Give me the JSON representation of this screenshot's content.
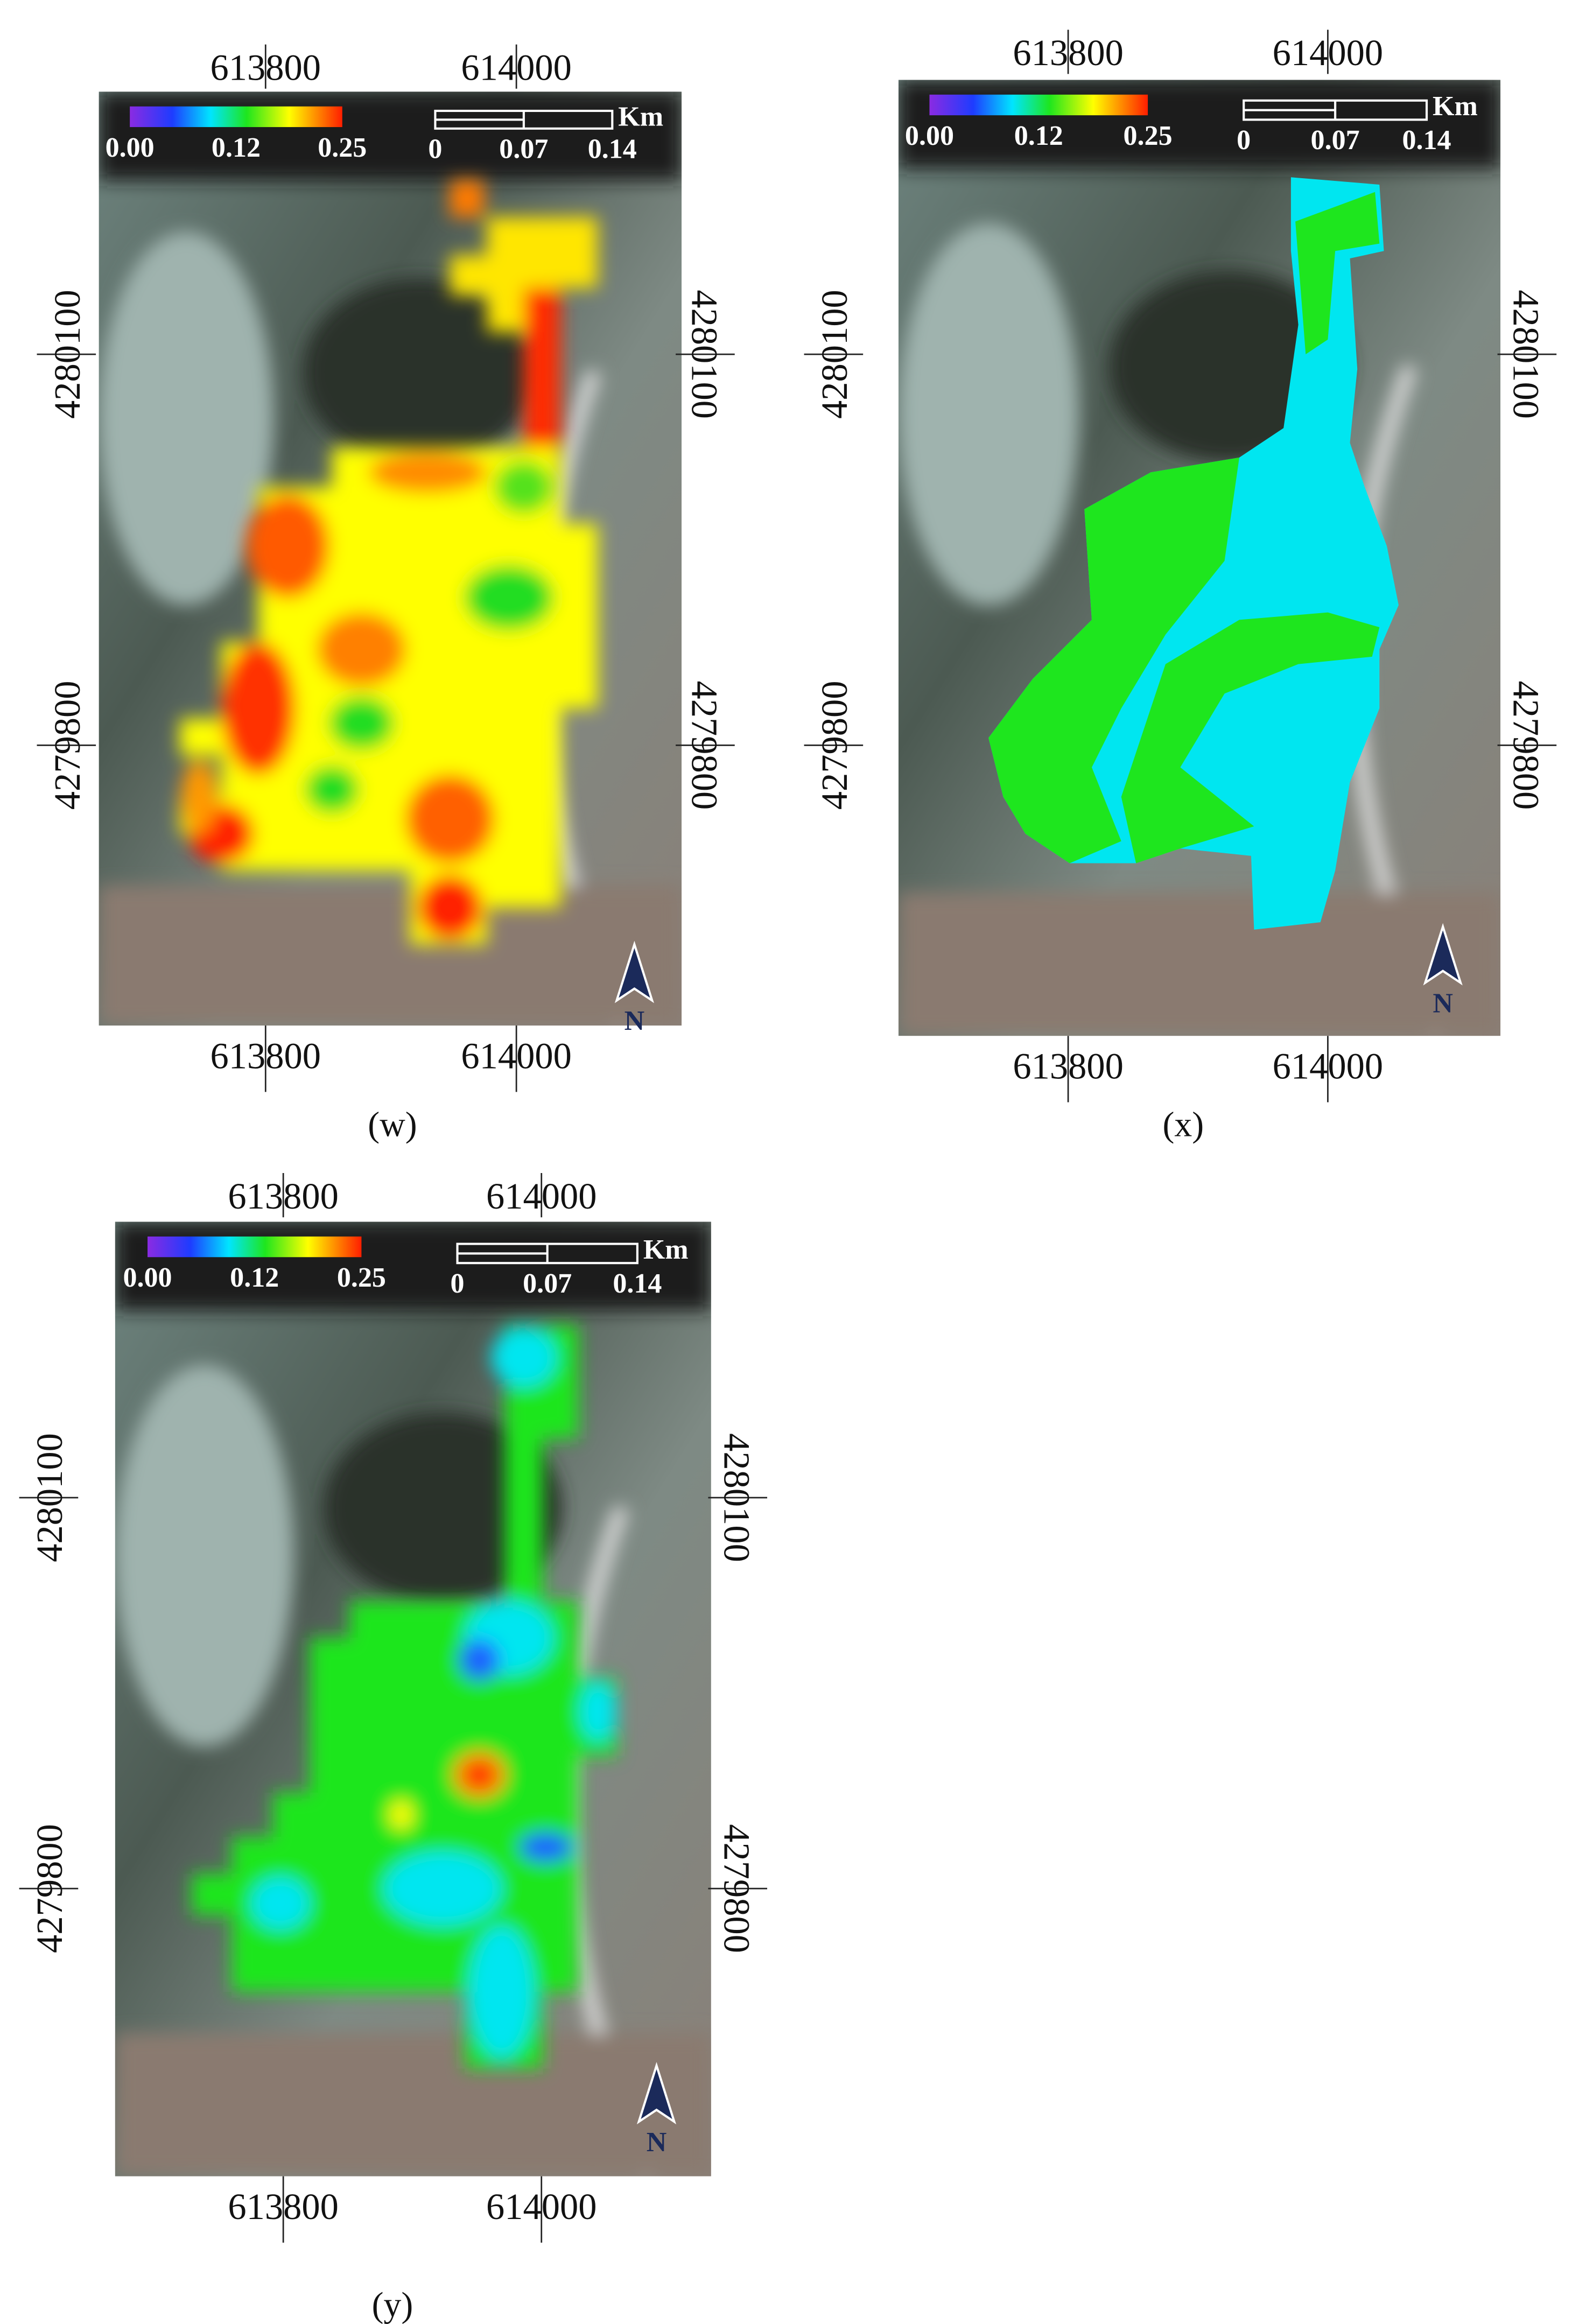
{
  "panels": [
    {
      "caption": "(w)",
      "top_labels": [
        "613800",
        "614000"
      ],
      "bottom_labels": [
        "613800",
        "614000"
      ],
      "left_labels": [
        "4280100",
        "4279800"
      ],
      "right_labels": [
        "4280100",
        "4279800"
      ],
      "colorbar_labels": [
        "0.00",
        "0.12",
        "0.25"
      ],
      "scale_unit": "Km",
      "scale_labels": [
        "0",
        "0.07",
        "0.14"
      ],
      "north": "N"
    },
    {
      "caption": "(x)",
      "top_labels": [
        "613800",
        "614000"
      ],
      "bottom_labels": [
        "613800",
        "614000"
      ],
      "left_labels": [
        "4280100",
        "4279800"
      ],
      "right_labels": [
        "4280100",
        "4279800"
      ],
      "colorbar_labels": [
        "0.00",
        "0.12",
        "0.25"
      ],
      "scale_unit": "Km",
      "scale_labels": [
        "0",
        "0.07",
        "0.14"
      ],
      "north": "N"
    },
    {
      "caption": "(y)",
      "top_labels": [
        "613800",
        "614000"
      ],
      "bottom_labels": [
        "613800",
        "614000"
      ],
      "left_labels": [
        "4280100",
        "4279800"
      ],
      "right_labels": [
        "4280100",
        "4279800"
      ],
      "colorbar_labels": [
        "0.00",
        "0.12",
        "0.25"
      ],
      "scale_unit": "Km",
      "scale_labels": [
        "0",
        "0.07",
        "0.14"
      ],
      "north": "N"
    }
  ]
}
